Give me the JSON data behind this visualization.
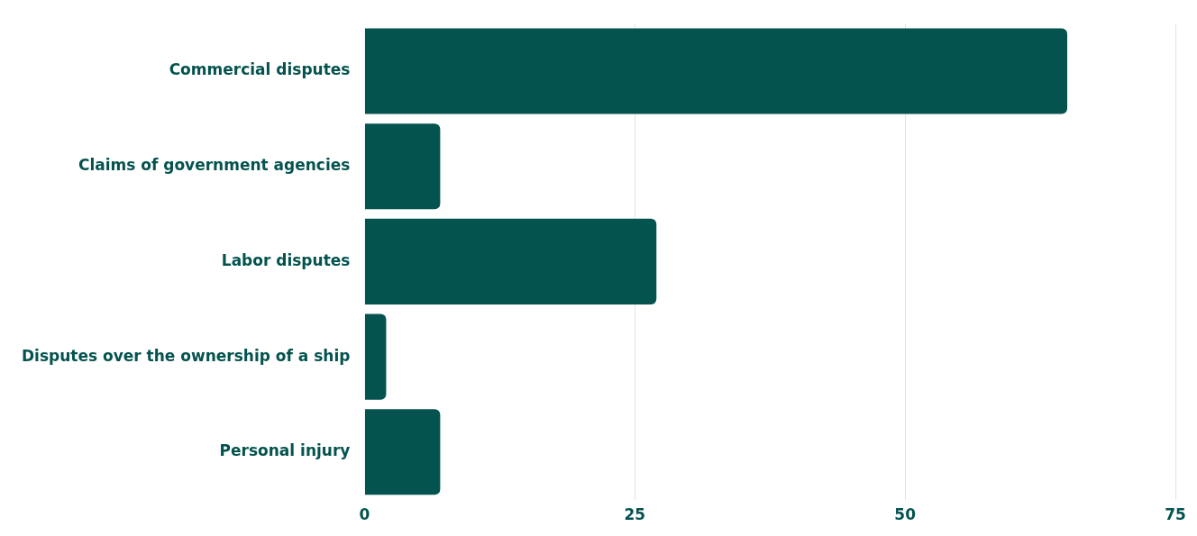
{
  "chart_data": {
    "type": "bar",
    "orientation": "horizontal",
    "categories": [
      "Commercial disputes",
      "Claims of government agencies",
      "Labor disputes",
      "Disputes over the ownership of a ship",
      "Personal injury"
    ],
    "values": [
      65,
      7,
      27,
      2,
      7
    ],
    "color": "#04534f",
    "xlim": [
      0,
      75
    ],
    "xticks": [
      0,
      25,
      50,
      75
    ],
    "grid": "x",
    "legend": false
  }
}
